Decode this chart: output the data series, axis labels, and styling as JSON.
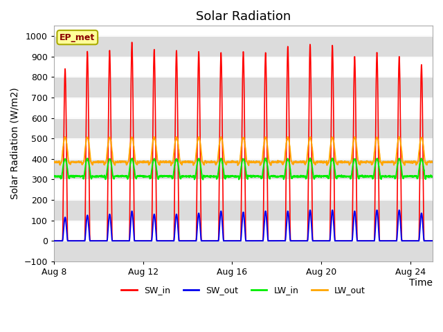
{
  "title": "Solar Radiation",
  "ylabel": "Solar Radiation (W/m2)",
  "xlabel": "Time",
  "ylim": [
    -100,
    1050
  ],
  "yticks": [
    -100,
    0,
    100,
    200,
    300,
    400,
    500,
    600,
    700,
    800,
    900,
    1000
  ],
  "n_days": 17,
  "SW_in_color": "#FF0000",
  "SW_out_color": "#0000EE",
  "LW_in_color": "#00EE00",
  "LW_out_color": "#FFA500",
  "figure_bg": "#FFFFFF",
  "plot_bg_light": "#FFFFFF",
  "plot_bg_dark": "#DCDCDC",
  "label_box_color": "#FFFF99",
  "label_box_edge": "#AAAA00",
  "label_text": "EP_met",
  "legend_items": [
    "SW_in",
    "SW_out",
    "LW_in",
    "LW_out"
  ],
  "xtick_labels": [
    "Aug 8",
    "Aug 12",
    "Aug 16",
    "Aug 20",
    "Aug 24"
  ],
  "xtick_positions": [
    0,
    4,
    8,
    12,
    16
  ],
  "title_fontsize": 13,
  "axis_fontsize": 10,
  "tick_fontsize": 9,
  "peak_SW": [
    840,
    925,
    930,
    970,
    935,
    930,
    925,
    920,
    925,
    920,
    950,
    960,
    955,
    900,
    920,
    900,
    860
  ],
  "peak_SW_out": [
    115,
    125,
    130,
    145,
    130,
    130,
    135,
    145,
    140,
    145,
    145,
    150,
    150,
    145,
    150,
    150,
    135
  ],
  "lw_in_night_base": 315,
  "lw_in_day_peak": 390,
  "lw_out_night_base": 385,
  "lw_out_day_peak": 490
}
